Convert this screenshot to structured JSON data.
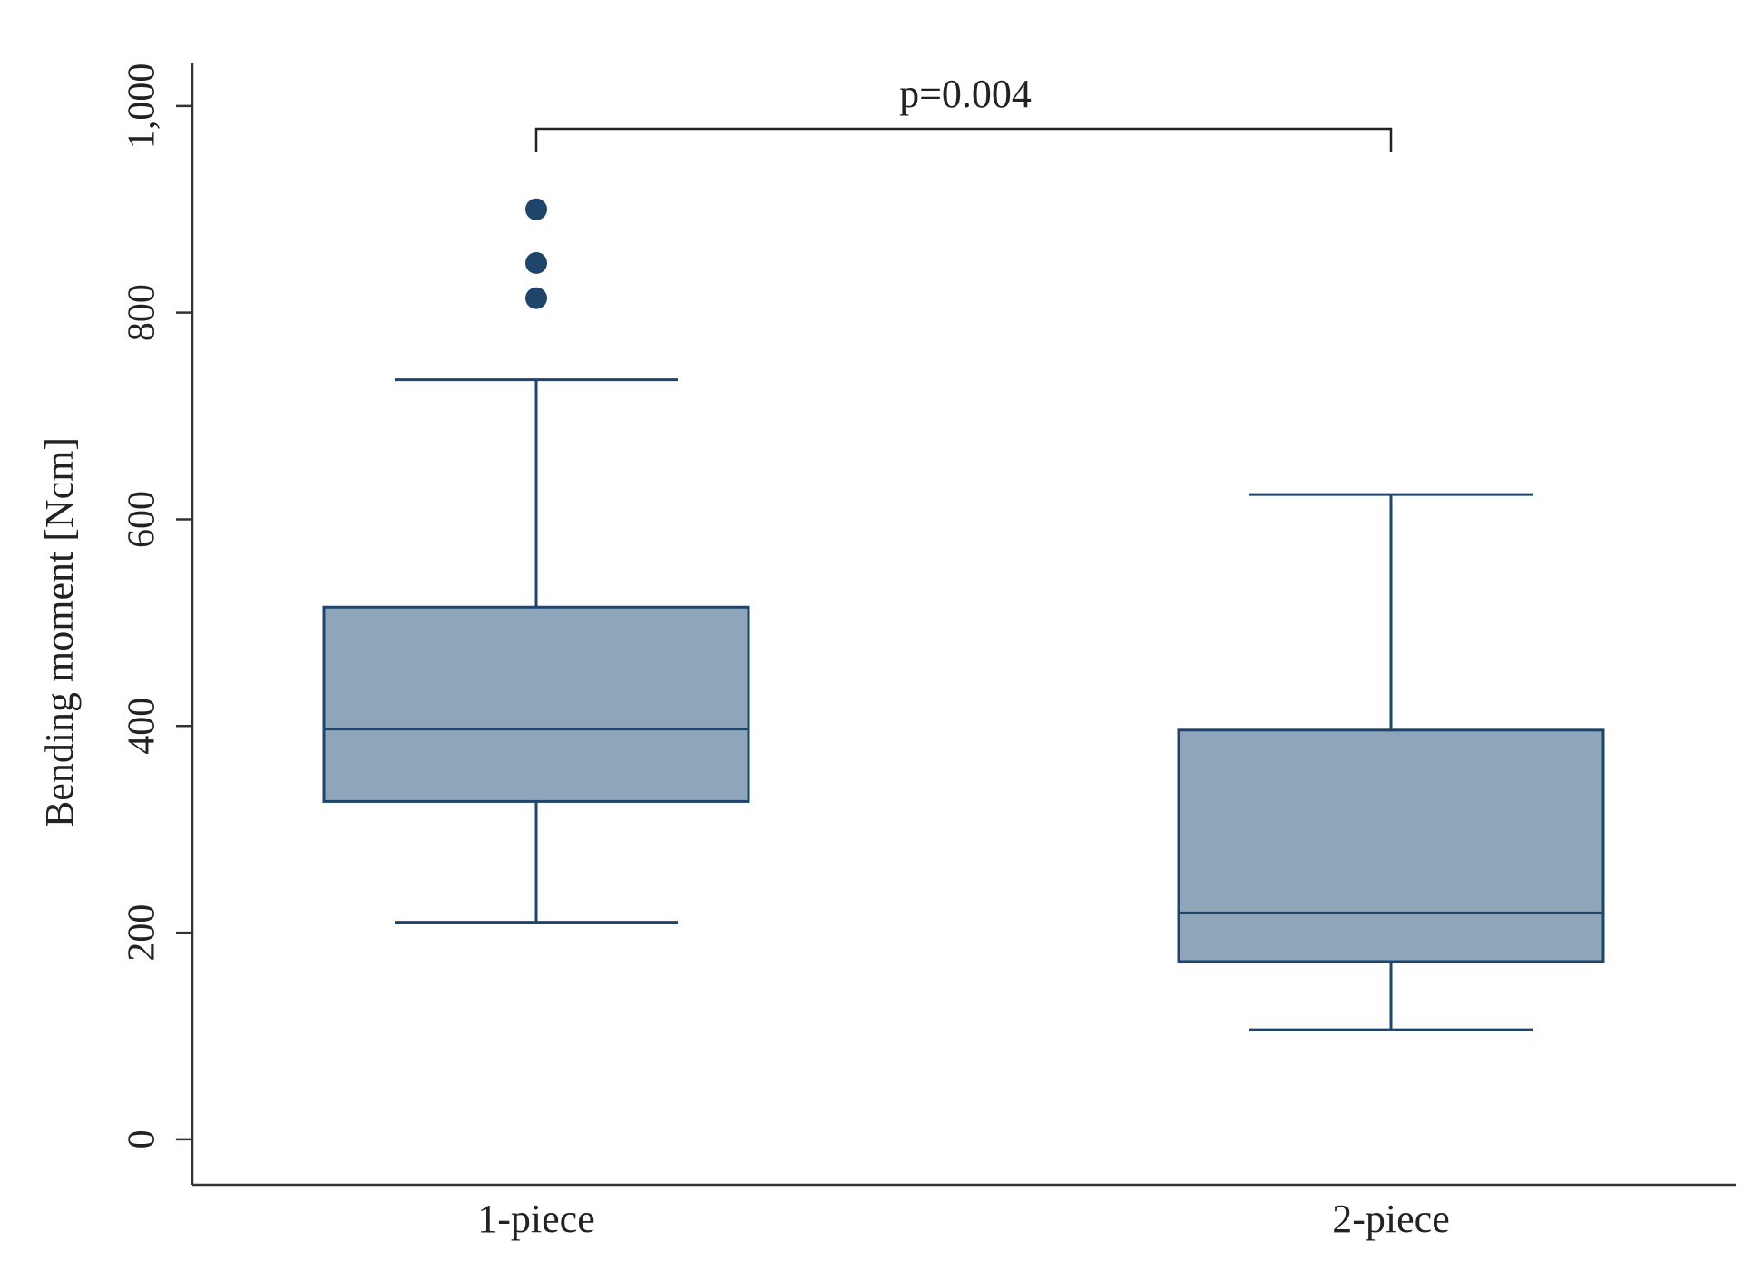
{
  "chart_data": {
    "type": "box",
    "y_label": "Bending moment [Ncm]",
    "annotation": "p=0.004",
    "categories": [
      "1-piece",
      "2-piece"
    ],
    "boxes": [
      {
        "whislo": 210,
        "q1": 327,
        "med": 397,
        "q3": 515,
        "whishi": 735,
        "fliers": [
          900,
          848,
          814
        ]
      },
      {
        "whislo": 106,
        "q1": 172,
        "med": 219,
        "q3": 396,
        "whishi": 624,
        "fliers": []
      }
    ],
    "color": "#8fa5ba",
    "edge_color": "#1f456b",
    "ylim": [
      -44,
      1042
    ],
    "yticks": [
      0,
      200,
      400,
      600,
      800,
      {
        "value": 1000,
        "label": "1,000"
      }
    ],
    "grid": false
  }
}
